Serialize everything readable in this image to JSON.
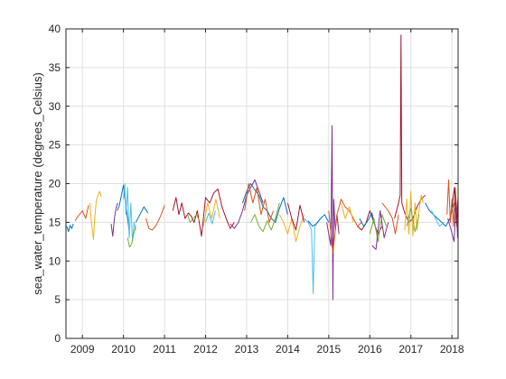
{
  "chart_data": {
    "type": "line",
    "title": "",
    "xlabel": "",
    "ylabel": "sea_water_temperature (degrees_Celsius)",
    "xlim": [
      2008.6,
      2018.15
    ],
    "ylim": [
      0,
      40
    ],
    "x_ticks": [
      {
        "label": "2009",
        "value": 2009.0
      },
      {
        "label": "2010",
        "value": 2010.0
      },
      {
        "label": "2011",
        "value": 2011.0
      },
      {
        "label": "2012",
        "value": 2012.0
      },
      {
        "label": "2013",
        "value": 2013.0
      },
      {
        "label": "2014",
        "value": 2014.0
      },
      {
        "label": "2015",
        "value": 2015.0
      },
      {
        "label": "2016",
        "value": 2016.0
      },
      {
        "label": "2017",
        "value": 2017.0
      },
      {
        "label": "2018",
        "value": 2018.0
      }
    ],
    "y_ticks": [
      0,
      5,
      10,
      15,
      20,
      25,
      30,
      35,
      40
    ],
    "grid": true,
    "legend": "none",
    "colors": [
      "#0072BD",
      "#D95319",
      "#EDB120",
      "#7E2F8E",
      "#77AC30",
      "#4DBEEE",
      "#A2142F"
    ],
    "series": [
      {
        "color": "#0072BD",
        "x": [
          2008.62,
          2008.66,
          2008.7,
          2008.74,
          2008.78
        ],
        "y": [
          14.5,
          13.8,
          14.6,
          14.2,
          14.8
        ]
      },
      {
        "color": "#D95319",
        "x": [
          2008.82,
          2008.9,
          2009.0,
          2009.08,
          2009.15
        ],
        "y": [
          15.2,
          15.8,
          16.5,
          15.5,
          17.2
        ]
      },
      {
        "color": "#EDB120",
        "x": [
          2009.18,
          2009.22,
          2009.27,
          2009.3,
          2009.34,
          2009.38,
          2009.42,
          2009.46
        ],
        "y": [
          17.5,
          15.0,
          12.8,
          15.5,
          17.8,
          18.5,
          19.0,
          18.3
        ]
      },
      {
        "color": "#7E2F8E",
        "x": [
          2009.7,
          2009.74,
          2009.78,
          2009.82,
          2009.86
        ],
        "y": [
          14.8,
          13.2,
          15.5,
          16.8,
          17.5
        ]
      },
      {
        "color": "#0072BD",
        "x": [
          2009.85,
          2009.9,
          2009.95,
          2010.0,
          2010.05,
          2010.1,
          2010.15
        ],
        "y": [
          16.5,
          17.2,
          18.5,
          19.8,
          17.5,
          15.5,
          13.5
        ]
      },
      {
        "color": "#4DBEEE",
        "x": [
          2010.0,
          2010.03,
          2010.06,
          2010.1,
          2010.14,
          2010.18,
          2010.22,
          2010.26,
          2010.3
        ],
        "y": [
          18.0,
          20.0,
          16.0,
          19.5,
          13.0,
          17.5,
          12.5,
          15.0,
          14.0
        ]
      },
      {
        "color": "#77AC30",
        "x": [
          2010.1,
          2010.15,
          2010.2,
          2010.25,
          2010.3
        ],
        "y": [
          13.0,
          11.8,
          12.2,
          13.5,
          14.5
        ]
      },
      {
        "color": "#0072BD",
        "x": [
          2010.3,
          2010.4,
          2010.5,
          2010.6
        ],
        "y": [
          15.0,
          16.0,
          17.0,
          16.2
        ]
      },
      {
        "color": "#D95319",
        "x": [
          2010.55,
          2010.62,
          2010.7,
          2010.78,
          2010.85,
          2010.92,
          2011.0
        ],
        "y": [
          15.5,
          14.2,
          14.0,
          14.5,
          15.2,
          16.0,
          17.2
        ]
      },
      {
        "color": "#A2142F",
        "x": [
          2011.2,
          2011.28,
          2011.35,
          2011.42,
          2011.5,
          2011.58,
          2011.65,
          2011.72,
          2011.8,
          2011.9,
          2012.0,
          2012.1,
          2012.2,
          2012.3,
          2012.4,
          2012.5,
          2012.6,
          2012.7
        ],
        "y": [
          16.5,
          18.2,
          16.0,
          17.5,
          15.5,
          16.2,
          15.8,
          15.0,
          16.5,
          13.2,
          18.2,
          17.5,
          18.8,
          19.3,
          17.0,
          15.5,
          14.2,
          15.0
        ]
      },
      {
        "color": "#77AC30",
        "x": [
          2011.55,
          2011.62,
          2011.7,
          2011.78,
          2011.85
        ],
        "y": [
          16.2,
          15.0,
          15.5,
          16.0,
          15.2
        ]
      },
      {
        "color": "#EDB120",
        "x": [
          2011.95,
          2012.05,
          2012.15,
          2012.25,
          2012.35
        ],
        "y": [
          14.5,
          17.5,
          15.5,
          18.0,
          15.5
        ]
      },
      {
        "color": "#4DBEEE",
        "x": [
          2012.0,
          2012.08,
          2012.16,
          2012.24
        ],
        "y": [
          15.0,
          16.2,
          14.8,
          16.5
        ]
      },
      {
        "color": "#7E2F8E",
        "x": [
          2012.6,
          2012.7,
          2012.8,
          2012.9,
          2013.0,
          2013.1,
          2013.2,
          2013.3,
          2013.4
        ],
        "y": [
          14.8,
          14.2,
          15.0,
          16.5,
          18.5,
          19.5,
          20.5,
          19.0,
          17.5
        ]
      },
      {
        "color": "#0072BD",
        "x": [
          2012.9,
          2013.0,
          2013.1,
          2013.2,
          2013.3,
          2013.4,
          2013.5,
          2013.6,
          2013.7,
          2013.8,
          2013.9,
          2014.0
        ],
        "y": [
          17.5,
          19.0,
          20.0,
          19.2,
          18.5,
          17.0,
          16.5,
          15.5,
          15.0,
          16.8,
          18.2,
          16.0
        ]
      },
      {
        "color": "#D95319",
        "x": [
          2012.95,
          2013.05,
          2013.15,
          2013.25,
          2013.35,
          2013.45,
          2013.55,
          2013.65
        ],
        "y": [
          16.5,
          20.0,
          17.5,
          19.5,
          16.0,
          18.0,
          15.0,
          16.5
        ]
      },
      {
        "color": "#77AC30",
        "x": [
          2013.1,
          2013.2,
          2013.3,
          2013.4,
          2013.5,
          2013.6,
          2013.7,
          2013.8
        ],
        "y": [
          15.0,
          16.0,
          14.5,
          13.8,
          15.2,
          14.0,
          15.5,
          17.5
        ]
      },
      {
        "color": "#EDB120",
        "x": [
          2013.8,
          2013.9,
          2014.0,
          2014.1,
          2014.2,
          2014.3,
          2014.4
        ],
        "y": [
          16.0,
          15.0,
          13.5,
          15.5,
          12.5,
          14.5,
          16.0
        ]
      },
      {
        "color": "#A2142F",
        "x": [
          2014.0,
          2014.1,
          2014.2,
          2014.3,
          2014.4
        ],
        "y": [
          17.5,
          15.5,
          14.0,
          17.2,
          15.0
        ]
      },
      {
        "color": "#4DBEEE",
        "x": [
          2014.4,
          2014.5,
          2014.58,
          2014.62,
          2014.66,
          2014.72,
          2014.8
        ],
        "y": [
          15.5,
          15.0,
          14.0,
          5.8,
          14.5,
          15.0,
          15.5
        ]
      },
      {
        "color": "#0072BD",
        "x": [
          2014.5,
          2014.6,
          2014.7,
          2014.8,
          2014.9,
          2015.0
        ],
        "y": [
          15.2,
          14.5,
          14.8,
          15.5,
          16.0,
          15.0
        ]
      },
      {
        "color": "#7E2F8E",
        "x": [
          2014.95,
          2015.0,
          2015.05,
          2015.08,
          2015.1,
          2015.12,
          2015.16,
          2015.2,
          2015.25
        ],
        "y": [
          15.0,
          13.5,
          12.0,
          27.5,
          5.0,
          18.0,
          14.0,
          16.0,
          13.5
        ]
      },
      {
        "color": "#D95319",
        "x": [
          2015.0,
          2015.1,
          2015.2,
          2015.3,
          2015.4,
          2015.5,
          2015.6,
          2015.7,
          2015.8
        ],
        "y": [
          16.5,
          11.0,
          16.0,
          18.0,
          17.0,
          16.5,
          15.5,
          14.5,
          15.0
        ]
      },
      {
        "color": "#EDB120",
        "x": [
          2015.3,
          2015.4,
          2015.5,
          2015.6
        ],
        "y": [
          17.5,
          15.5,
          17.0,
          15.0
        ]
      },
      {
        "color": "#A2142F",
        "x": [
          2015.7,
          2015.8,
          2015.9,
          2016.0,
          2016.1,
          2016.2,
          2016.3
        ],
        "y": [
          14.5,
          14.0,
          14.8,
          16.5,
          15.0,
          13.5,
          14.5
        ]
      },
      {
        "color": "#0072BD",
        "x": [
          2015.75,
          2015.85,
          2015.95,
          2016.05,
          2016.15
        ],
        "y": [
          15.5,
          14.5,
          15.2,
          16.2,
          14.0
        ]
      },
      {
        "color": "#77AC30",
        "x": [
          2016.0,
          2016.1,
          2016.2,
          2016.3,
          2016.4
        ],
        "y": [
          13.5,
          15.5,
          12.5,
          16.0,
          14.5
        ]
      },
      {
        "color": "#7E2F8E",
        "x": [
          2016.05,
          2016.15,
          2016.25,
          2016.35,
          2016.45
        ],
        "y": [
          12.0,
          11.5,
          16.5,
          13.0,
          15.0
        ]
      },
      {
        "color": "#D95319",
        "x": [
          2016.3,
          2016.45,
          2016.55,
          2016.62,
          2016.7
        ],
        "y": [
          17.5,
          16.5,
          15.5,
          13.5,
          16.0
        ]
      },
      {
        "color": "#A2142F",
        "x": [
          2016.6,
          2016.65,
          2016.7,
          2016.74,
          2016.76,
          2016.78,
          2016.85,
          2016.95,
          2017.05,
          2017.15,
          2017.25,
          2017.35
        ],
        "y": [
          15.5,
          16.5,
          17.5,
          18.5,
          39.2,
          17.5,
          16.2,
          15.0,
          15.5,
          17.0,
          18.0,
          18.5
        ]
      },
      {
        "color": "#EDB120",
        "x": [
          2016.85,
          2016.9,
          2016.95,
          2017.0,
          2017.05,
          2017.1,
          2017.15,
          2017.2,
          2017.25,
          2017.3
        ],
        "y": [
          14.0,
          18.0,
          13.5,
          19.0,
          13.2,
          17.5,
          14.0,
          16.5,
          18.5,
          17.5
        ]
      },
      {
        "color": "#77AC30",
        "x": [
          2016.9,
          2017.0,
          2017.1,
          2017.2
        ],
        "y": [
          14.5,
          16.8,
          13.8,
          16.0
        ]
      },
      {
        "color": "#0072BD",
        "x": [
          2017.35,
          2017.45,
          2017.55,
          2017.65,
          2017.75,
          2017.85,
          2017.95,
          2018.05,
          2018.12
        ],
        "y": [
          17.5,
          16.5,
          16.0,
          15.5,
          15.0,
          14.5,
          15.5,
          17.5,
          15.0
        ]
      },
      {
        "color": "#4DBEEE",
        "x": [
          2017.5,
          2017.6,
          2017.7,
          2017.8
        ],
        "y": [
          16.5,
          15.5,
          14.5,
          15.0
        ]
      },
      {
        "color": "#D95319",
        "x": [
          2017.88,
          2017.92,
          2017.96,
          2018.0,
          2018.04,
          2018.08,
          2018.12
        ],
        "y": [
          16.0,
          20.5,
          15.0,
          18.0,
          14.5,
          19.5,
          16.5
        ]
      },
      {
        "color": "#7E2F8E",
        "x": [
          2017.9,
          2017.98,
          2018.05,
          2018.1,
          2018.14
        ],
        "y": [
          15.5,
          14.0,
          12.5,
          17.5,
          13.0
        ]
      },
      {
        "color": "#A2142F",
        "x": [
          2018.0,
          2018.06,
          2018.12,
          2018.15
        ],
        "y": [
          17.0,
          19.5,
          14.5,
          18.5
        ]
      }
    ]
  }
}
